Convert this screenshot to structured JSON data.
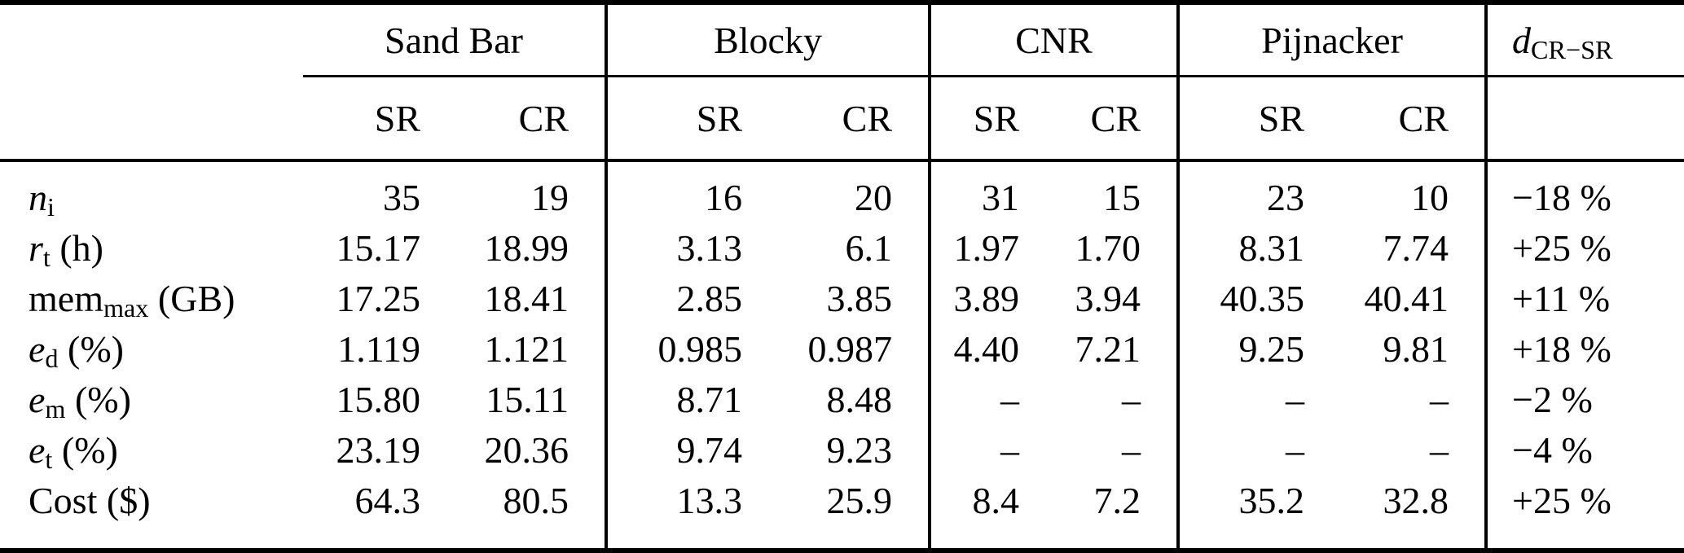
{
  "colors": {
    "background": "#ffffff",
    "text": "#000000",
    "rule": "#000000"
  },
  "table": {
    "groups": [
      {
        "label": "Sand Bar",
        "sub_headers": [
          "SR",
          "CR"
        ]
      },
      {
        "label": "Blocky",
        "sub_headers": [
          "SR",
          "CR"
        ]
      },
      {
        "label": "CNR",
        "sub_headers": [
          "SR",
          "CR"
        ]
      },
      {
        "label": "Pijnacker",
        "sub_headers": [
          "SR",
          "CR"
        ]
      }
    ],
    "delta_header": {
      "base": "d",
      "base_italic": true,
      "subscript": "CR−SR"
    },
    "rows": [
      {
        "label": {
          "base": "n",
          "base_italic": true,
          "subscript": "i",
          "unit": ""
        },
        "values": [
          "35",
          "19",
          "16",
          "20",
          "31",
          "15",
          "23",
          "10"
        ],
        "delta": "−18 %"
      },
      {
        "label": {
          "base": "r",
          "base_italic": true,
          "subscript": "t",
          "unit": " (h)"
        },
        "values": [
          "15.17",
          "18.99",
          "3.13",
          "6.1",
          "1.97",
          "1.70",
          "8.31",
          "7.74"
        ],
        "delta": "+25 %"
      },
      {
        "label": {
          "base": "mem",
          "base_italic": false,
          "subscript": "max",
          "unit": " (GB)"
        },
        "values": [
          "17.25",
          "18.41",
          "2.85",
          "3.85",
          "3.89",
          "3.94",
          "40.35",
          "40.41"
        ],
        "delta": "+11 %"
      },
      {
        "label": {
          "base": "e",
          "base_italic": true,
          "subscript": "d",
          "unit": " (%)"
        },
        "values": [
          "1.119",
          "1.121",
          "0.985",
          "0.987",
          "4.40",
          "7.21",
          "9.25",
          "9.81"
        ],
        "delta": "+18 %"
      },
      {
        "label": {
          "base": "e",
          "base_italic": true,
          "subscript": "m",
          "unit": " (%)"
        },
        "values": [
          "15.80",
          "15.11",
          "8.71",
          "8.48",
          "–",
          "–",
          "–",
          "–"
        ],
        "delta": "−2 %"
      },
      {
        "label": {
          "base": "e",
          "base_italic": true,
          "subscript": "t",
          "unit": " (%)"
        },
        "values": [
          "23.19",
          "20.36",
          "9.74",
          "9.23",
          "–",
          "–",
          "–",
          "–"
        ],
        "delta": "−4 %"
      },
      {
        "label": {
          "base": "Cost",
          "base_italic": false,
          "subscript": "",
          "unit": " ($)"
        },
        "values": [
          "64.3",
          "80.5",
          "13.3",
          "25.9",
          "8.4",
          "7.2",
          "35.2",
          "32.8"
        ],
        "delta": "+25 %"
      }
    ]
  }
}
